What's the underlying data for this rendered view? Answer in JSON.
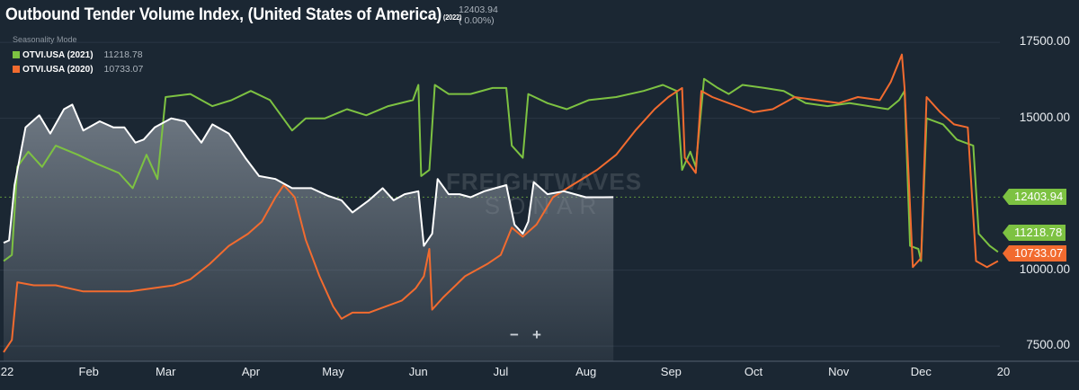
{
  "header": {
    "title": "Outbound Tender Volume Index, (United States of America)",
    "title_year": "(2022)",
    "current_value": "12403.94",
    "current_change": "( 0.00%)",
    "seasonality_label": "Seasonality Mode"
  },
  "legend": [
    {
      "name": "OTVI.USA (2021)",
      "value": "11218.78",
      "color": "#7dc242"
    },
    {
      "name": "OTVI.USA (2020)",
      "value": "10733.07",
      "color": "#f26b2f"
    }
  ],
  "zoom": {
    "minus": "−",
    "plus": "+"
  },
  "watermark": "FREIGHTWAVES SONAR",
  "chart_data": {
    "type": "area",
    "ylim": [
      7000,
      18600
    ],
    "xlim": [
      "2022-01-01",
      "2022-12-31"
    ],
    "x_ticks": [
      "22",
      "Feb",
      "Mar",
      "Apr",
      "May",
      "Jun",
      "Jul",
      "Aug",
      "Sep",
      "Oct",
      "Nov",
      "Dec",
      "20"
    ],
    "y_ticks": [
      "7500.00",
      "10000.00",
      "15000.00",
      "17500.00"
    ],
    "reference_line": 12403.94,
    "last_value_flags": [
      {
        "value": "12403.94",
        "color": "#7dc242",
        "y": 12403.94
      },
      {
        "value": "11218.78",
        "color": "#7dc242",
        "y": 11218.78
      },
      {
        "value": "10733.07",
        "color": "#f26b2f",
        "y": 10733.07
      }
    ],
    "series": [
      {
        "name": "OTVI.USA",
        "color": "#ffffff",
        "area": true,
        "points": [
          [
            "2022-01-01",
            10900
          ],
          [
            "2022-01-03",
            10980
          ],
          [
            "2022-01-05",
            12800
          ],
          [
            "2022-01-09",
            14700
          ],
          [
            "2022-01-14",
            15100
          ],
          [
            "2022-01-18",
            14500
          ],
          [
            "2022-01-23",
            15300
          ],
          [
            "2022-01-26",
            15450
          ],
          [
            "2022-01-30",
            14600
          ],
          [
            "2022-02-05",
            14900
          ],
          [
            "2022-02-10",
            14700
          ],
          [
            "2022-02-14",
            14700
          ],
          [
            "2022-02-18",
            14200
          ],
          [
            "2022-02-21",
            14300
          ],
          [
            "2022-02-25",
            14700
          ],
          [
            "2022-03-03",
            15000
          ],
          [
            "2022-03-08",
            14900
          ],
          [
            "2022-03-14",
            14200
          ],
          [
            "2022-03-18",
            14800
          ],
          [
            "2022-03-24",
            14500
          ],
          [
            "2022-03-30",
            13700
          ],
          [
            "2022-04-04",
            13100
          ],
          [
            "2022-04-10",
            13000
          ],
          [
            "2022-04-16",
            12700
          ],
          [
            "2022-04-23",
            12700
          ],
          [
            "2022-04-29",
            12450
          ],
          [
            "2022-05-04",
            12300
          ],
          [
            "2022-05-08",
            11900
          ],
          [
            "2022-05-14",
            12300
          ],
          [
            "2022-05-19",
            12700
          ],
          [
            "2022-05-23",
            12300
          ],
          [
            "2022-05-27",
            12500
          ],
          [
            "2022-06-01",
            12600
          ],
          [
            "2022-06-03",
            10800
          ],
          [
            "2022-06-06",
            11200
          ],
          [
            "2022-06-08",
            13000
          ],
          [
            "2022-06-12",
            12500
          ],
          [
            "2022-06-16",
            12500
          ],
          [
            "2022-06-20",
            12400
          ],
          [
            "2022-06-25",
            12600
          ],
          [
            "2022-06-29",
            12700
          ],
          [
            "2022-07-03",
            12800
          ],
          [
            "2022-07-06",
            11500
          ],
          [
            "2022-07-09",
            11200
          ],
          [
            "2022-07-11",
            11600
          ],
          [
            "2022-07-13",
            12900
          ],
          [
            "2022-07-18",
            12500
          ],
          [
            "2022-07-24",
            12600
          ],
          [
            "2022-08-01",
            12400
          ],
          [
            "2022-08-07",
            12400
          ],
          [
            "2022-08-11",
            12403.94
          ]
        ]
      },
      {
        "name": "OTVI.USA (2021)",
        "color": "#7dc242",
        "area": false,
        "points": [
          [
            "2022-01-01",
            10300
          ],
          [
            "2022-01-04",
            10500
          ],
          [
            "2022-01-06",
            13400
          ],
          [
            "2022-01-10",
            13900
          ],
          [
            "2022-01-15",
            13400
          ],
          [
            "2022-01-20",
            14100
          ],
          [
            "2022-01-28",
            13800
          ],
          [
            "2022-02-04",
            13500
          ],
          [
            "2022-02-12",
            13200
          ],
          [
            "2022-02-17",
            12700
          ],
          [
            "2022-02-22",
            13800
          ],
          [
            "2022-02-26",
            13000
          ],
          [
            "2022-03-01",
            15700
          ],
          [
            "2022-03-10",
            15800
          ],
          [
            "2022-03-18",
            15400
          ],
          [
            "2022-03-25",
            15600
          ],
          [
            "2022-04-01",
            15900
          ],
          [
            "2022-04-08",
            15600
          ],
          [
            "2022-04-12",
            15100
          ],
          [
            "2022-04-16",
            14600
          ],
          [
            "2022-04-21",
            15000
          ],
          [
            "2022-04-28",
            15000
          ],
          [
            "2022-05-06",
            15300
          ],
          [
            "2022-05-13",
            15100
          ],
          [
            "2022-05-21",
            15400
          ],
          [
            "2022-05-30",
            15600
          ],
          [
            "2022-06-01",
            16100
          ],
          [
            "2022-06-02",
            13100
          ],
          [
            "2022-06-05",
            13300
          ],
          [
            "2022-06-07",
            16100
          ],
          [
            "2022-06-12",
            15800
          ],
          [
            "2022-06-20",
            15800
          ],
          [
            "2022-06-28",
            16000
          ],
          [
            "2022-07-03",
            16000
          ],
          [
            "2022-07-05",
            14100
          ],
          [
            "2022-07-09",
            13700
          ],
          [
            "2022-07-11",
            15800
          ],
          [
            "2022-07-18",
            15500
          ],
          [
            "2022-07-25",
            15300
          ],
          [
            "2022-08-02",
            15600
          ],
          [
            "2022-08-12",
            15700
          ],
          [
            "2022-08-22",
            15900
          ],
          [
            "2022-08-29",
            16100
          ],
          [
            "2022-09-03",
            15900
          ],
          [
            "2022-09-05",
            13300
          ],
          [
            "2022-09-08",
            13900
          ],
          [
            "2022-09-10",
            13400
          ],
          [
            "2022-09-13",
            16300
          ],
          [
            "2022-09-18",
            16000
          ],
          [
            "2022-09-22",
            15800
          ],
          [
            "2022-09-27",
            16100
          ],
          [
            "2022-10-05",
            16000
          ],
          [
            "2022-10-12",
            15900
          ],
          [
            "2022-10-20",
            15500
          ],
          [
            "2022-10-28",
            15400
          ],
          [
            "2022-11-05",
            15500
          ],
          [
            "2022-11-12",
            15400
          ],
          [
            "2022-11-19",
            15300
          ],
          [
            "2022-11-23",
            15600
          ],
          [
            "2022-11-25",
            15900
          ],
          [
            "2022-11-27",
            10800
          ],
          [
            "2022-11-30",
            10700
          ],
          [
            "2022-12-01",
            10300
          ],
          [
            "2022-12-03",
            15000
          ],
          [
            "2022-12-09",
            14800
          ],
          [
            "2022-12-14",
            14300
          ],
          [
            "2022-12-17",
            14200
          ],
          [
            "2022-12-20",
            14100
          ],
          [
            "2022-12-22",
            11200
          ],
          [
            "2022-12-26",
            10800
          ],
          [
            "2022-12-29",
            10600
          ]
        ]
      },
      {
        "name": "OTVI.USA (2020)",
        "color": "#f26b2f",
        "area": false,
        "points": [
          [
            "2022-01-01",
            7300
          ],
          [
            "2022-01-04",
            7700
          ],
          [
            "2022-01-06",
            9600
          ],
          [
            "2022-01-12",
            9500
          ],
          [
            "2022-01-20",
            9500
          ],
          [
            "2022-01-30",
            9300
          ],
          [
            "2022-02-08",
            9300
          ],
          [
            "2022-02-16",
            9300
          ],
          [
            "2022-02-24",
            9400
          ],
          [
            "2022-03-04",
            9500
          ],
          [
            "2022-03-10",
            9700
          ],
          [
            "2022-03-17",
            10200
          ],
          [
            "2022-03-24",
            10800
          ],
          [
            "2022-03-31",
            11200
          ],
          [
            "2022-04-05",
            11600
          ],
          [
            "2022-04-10",
            12400
          ],
          [
            "2022-04-13",
            12800
          ],
          [
            "2022-04-17",
            12400
          ],
          [
            "2022-04-21",
            11000
          ],
          [
            "2022-04-26",
            9800
          ],
          [
            "2022-05-01",
            8800
          ],
          [
            "2022-05-04",
            8400
          ],
          [
            "2022-05-08",
            8600
          ],
          [
            "2022-05-14",
            8600
          ],
          [
            "2022-05-20",
            8800
          ],
          [
            "2022-05-26",
            9000
          ],
          [
            "2022-05-31",
            9400
          ],
          [
            "2022-06-03",
            9800
          ],
          [
            "2022-06-05",
            10700
          ],
          [
            "2022-06-06",
            8700
          ],
          [
            "2022-06-10",
            9100
          ],
          [
            "2022-06-18",
            9800
          ],
          [
            "2022-06-26",
            10200
          ],
          [
            "2022-07-01",
            10500
          ],
          [
            "2022-07-05",
            11400
          ],
          [
            "2022-07-09",
            11100
          ],
          [
            "2022-07-14",
            11500
          ],
          [
            "2022-07-20",
            12400
          ],
          [
            "2022-07-27",
            12800
          ],
          [
            "2022-08-05",
            13300
          ],
          [
            "2022-08-12",
            13800
          ],
          [
            "2022-08-19",
            14600
          ],
          [
            "2022-08-26",
            15300
          ],
          [
            "2022-08-31",
            15700
          ],
          [
            "2022-09-05",
            16000
          ],
          [
            "2022-09-06",
            13700
          ],
          [
            "2022-09-10",
            13200
          ],
          [
            "2022-09-12",
            15900
          ],
          [
            "2022-09-16",
            15700
          ],
          [
            "2022-09-22",
            15500
          ],
          [
            "2022-10-01",
            15200
          ],
          [
            "2022-10-08",
            15300
          ],
          [
            "2022-10-16",
            15700
          ],
          [
            "2022-10-24",
            15600
          ],
          [
            "2022-11-01",
            15500
          ],
          [
            "2022-11-08",
            15700
          ],
          [
            "2022-11-16",
            15600
          ],
          [
            "2022-11-20",
            16200
          ],
          [
            "2022-11-24",
            17100
          ],
          [
            "2022-11-25",
            16000
          ],
          [
            "2022-11-28",
            10100
          ],
          [
            "2022-12-01",
            10400
          ],
          [
            "2022-12-03",
            15700
          ],
          [
            "2022-12-08",
            15200
          ],
          [
            "2022-12-13",
            14800
          ],
          [
            "2022-12-18",
            14700
          ],
          [
            "2022-12-21",
            10300
          ],
          [
            "2022-12-25",
            10100
          ],
          [
            "2022-12-29",
            10300
          ]
        ]
      }
    ]
  }
}
